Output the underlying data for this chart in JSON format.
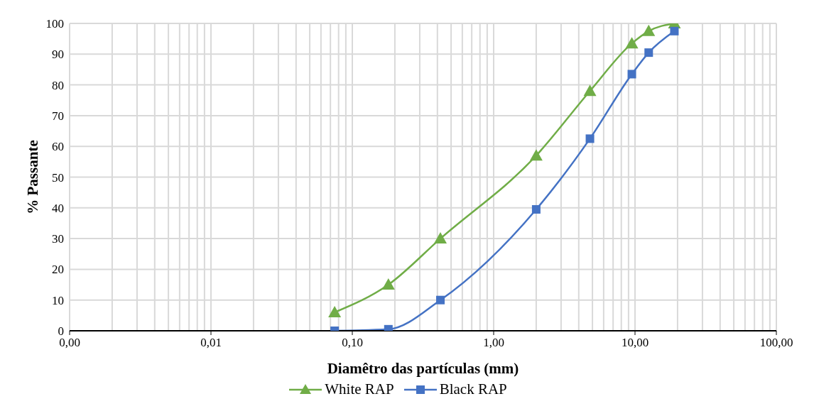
{
  "chart_data": {
    "type": "line",
    "xlabel": "Diamêtro das partículas (mm)",
    "ylabel": "% Passante",
    "log": "x",
    "grid": true,
    "legend": "bottom",
    "xlim": [
      0.001,
      100
    ],
    "xticks": [
      {
        "value": 0.001,
        "label": "0,00"
      },
      {
        "value": 0.002,
        "label": null
      },
      {
        "value": 0.003,
        "label": null
      },
      {
        "value": 0.004,
        "label": null
      },
      {
        "value": 0.005,
        "label": null
      },
      {
        "value": 0.006,
        "label": null
      },
      {
        "value": 0.007,
        "label": null
      },
      {
        "value": 0.008,
        "label": null
      },
      {
        "value": 0.009,
        "label": null
      },
      {
        "value": 0.01,
        "label": "0,01"
      },
      {
        "value": 0.02,
        "label": null
      },
      {
        "value": 0.03,
        "label": null
      },
      {
        "value": 0.04,
        "label": null
      },
      {
        "value": 0.05,
        "label": null
      },
      {
        "value": 0.06,
        "label": null
      },
      {
        "value": 0.07,
        "label": null
      },
      {
        "value": 0.08,
        "label": null
      },
      {
        "value": 0.09,
        "label": null
      },
      {
        "value": 0.1,
        "label": "0,10"
      },
      {
        "value": 0.2,
        "label": null
      },
      {
        "value": 0.3,
        "label": null
      },
      {
        "value": 0.4,
        "label": null
      },
      {
        "value": 0.5,
        "label": null
      },
      {
        "value": 0.6,
        "label": null
      },
      {
        "value": 0.7,
        "label": null
      },
      {
        "value": 0.8,
        "label": null
      },
      {
        "value": 0.9,
        "label": null
      },
      {
        "value": 1,
        "label": "1,00"
      },
      {
        "value": 2,
        "label": null
      },
      {
        "value": 3,
        "label": null
      },
      {
        "value": 4,
        "label": null
      },
      {
        "value": 5,
        "label": null
      },
      {
        "value": 6,
        "label": null
      },
      {
        "value": 7,
        "label": null
      },
      {
        "value": 8,
        "label": null
      },
      {
        "value": 9,
        "label": null
      },
      {
        "value": 10,
        "label": "10,00"
      },
      {
        "value": 20,
        "label": null
      },
      {
        "value": 30,
        "label": null
      },
      {
        "value": 40,
        "label": null
      },
      {
        "value": 50,
        "label": null
      },
      {
        "value": 60,
        "label": null
      },
      {
        "value": 70,
        "label": null
      },
      {
        "value": 80,
        "label": null
      },
      {
        "value": 90,
        "label": null
      },
      {
        "value": 100,
        "label": "100,00"
      }
    ],
    "ylim": [
      0,
      100
    ],
    "yticks": [
      0,
      10,
      20,
      30,
      40,
      50,
      60,
      70,
      80,
      90,
      100
    ],
    "series": [
      {
        "name": "White RAP",
        "color": "#70ad47",
        "marker": "triangle",
        "x": [
          0.075,
          0.18,
          0.42,
          2.0,
          4.8,
          9.5,
          12.5,
          19.0
        ],
        "values": [
          6,
          15,
          30,
          57,
          78,
          93.5,
          97.5,
          100
        ]
      },
      {
        "name": "Black RAP",
        "color": "#4472c4",
        "marker": "square",
        "x": [
          0.075,
          0.18,
          0.42,
          2.0,
          4.8,
          9.5,
          12.5,
          19.0
        ],
        "values": [
          0,
          0.5,
          10,
          39.5,
          62.5,
          83.5,
          90.5,
          97.5
        ]
      }
    ]
  }
}
